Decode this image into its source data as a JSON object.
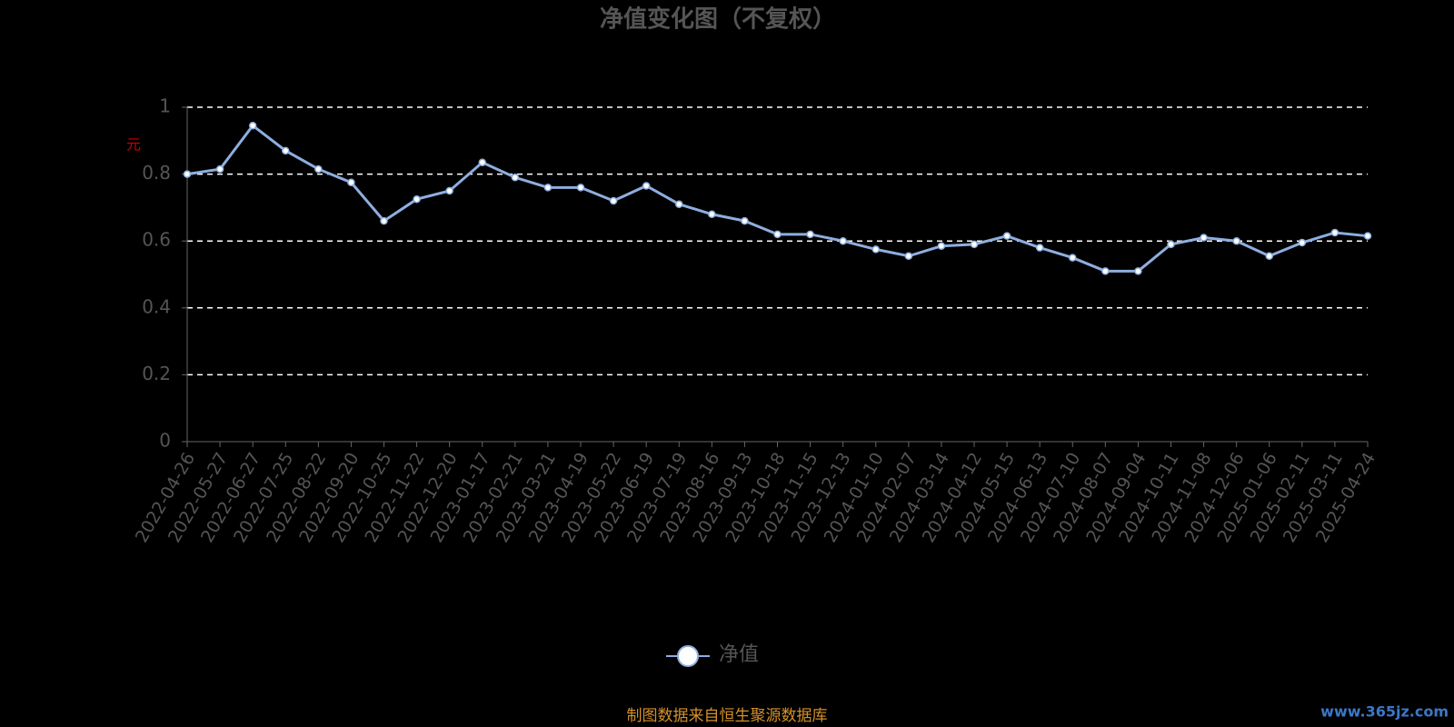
{
  "chart_data": {
    "type": "line",
    "title": "净值变化图（不复权）",
    "y_label": "元",
    "categories": [
      "2022-04-26",
      "2022-05-27",
      "2022-06-27",
      "2022-07-25",
      "2022-08-22",
      "2022-09-20",
      "2022-10-25",
      "2022-11-22",
      "2022-12-20",
      "2023-01-17",
      "2023-02-21",
      "2023-03-21",
      "2023-04-19",
      "2023-05-22",
      "2023-06-19",
      "2023-07-19",
      "2023-08-16",
      "2023-09-13",
      "2023-10-18",
      "2023-11-15",
      "2023-12-13",
      "2024-01-10",
      "2024-02-07",
      "2024-03-14",
      "2024-04-12",
      "2024-05-15",
      "2024-06-13",
      "2024-07-10",
      "2024-08-07",
      "2024-09-04",
      "2024-10-11",
      "2024-11-08",
      "2024-12-06",
      "2025-01-06",
      "2025-02-11",
      "2025-03-11",
      "2025-04-24"
    ],
    "series": [
      {
        "name": "净值",
        "color": "#8eaee0",
        "values": [
          0.8,
          0.815,
          0.945,
          0.87,
          0.815,
          0.775,
          0.66,
          0.725,
          0.75,
          0.835,
          0.79,
          0.76,
          0.76,
          0.72,
          0.765,
          0.71,
          0.68,
          0.66,
          0.62,
          0.62,
          0.6,
          0.575,
          0.555,
          0.585,
          0.59,
          0.615,
          0.58,
          0.55,
          0.51,
          0.51,
          0.59,
          0.61,
          0.6,
          0.555,
          0.595,
          0.625,
          0.615
        ]
      }
    ],
    "ylim": [
      0,
      1
    ],
    "yticks": [
      0,
      0.2,
      0.4,
      0.6,
      0.8,
      1
    ],
    "grid": true,
    "source": "制图数据来自恒生聚源数据库",
    "watermark": "www.365jz.com"
  }
}
